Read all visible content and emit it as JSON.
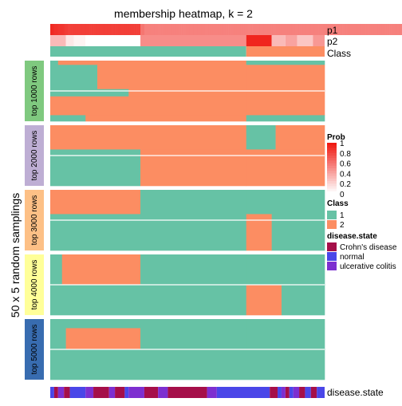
{
  "chart_data": {
    "type": "heatmap",
    "title": "membership heatmap, k = 2",
    "ylabel": "50 x 5 random samplings",
    "top_annotations": [
      "p1",
      "p2",
      "Class"
    ],
    "bottom_annotation": "disease.state",
    "row_groups": [
      {
        "label": "top 1000 rows",
        "color": "#7fc97f"
      },
      {
        "label": "top 2000 rows",
        "color": "#beaed4"
      },
      {
        "label": "top 3000 rows",
        "color": "#fdc086"
      },
      {
        "label": "top 4000 rows",
        "color": "#ffff99"
      },
      {
        "label": "top 5000 rows",
        "color": "#386cb0"
      }
    ],
    "colors": {
      "class_1": "#66c2a5",
      "class_2": "#fc8d62",
      "crohns": "#a50f49",
      "normal": "#4a46e8",
      "uc": "#7d2fd0",
      "prob_low": "#ffffff",
      "prob_high": "#ef1a12"
    },
    "legends": {
      "prob": {
        "title": "Prob",
        "ticks": [
          "1",
          "0.8",
          "0.6",
          "0.4",
          "0.2",
          "0"
        ]
      },
      "class": {
        "title": "Class",
        "items": [
          "1",
          "2"
        ]
      },
      "disease": {
        "title": "disease.state",
        "items": [
          "Crohn's disease",
          "normal",
          "ulcerative colitis"
        ]
      }
    },
    "p1": [
      0.94,
      0.92,
      0.9,
      0.9,
      0.88,
      0.88,
      0.88,
      0.86,
      0.85,
      0.84,
      0.84,
      0.84,
      0.84,
      0.84,
      0.84,
      0.84,
      0.84,
      0.84,
      0.84,
      0.84,
      0.84,
      0.84,
      0.84,
      0.84,
      0.84,
      0.84,
      0.84,
      0.84,
      0.84,
      0.84,
      0.84,
      0.84,
      0.84,
      0.84,
      0.84,
      0.84,
      0.84,
      0.84,
      0.84,
      0.84,
      0.84,
      0.84,
      0.84,
      0.84,
      0.84,
      0.84,
      0.6,
      0.6,
      0.55,
      0.55,
      0.55,
      0.55,
      0.55,
      0.55,
      0.55,
      0.55,
      0.55,
      0.55,
      0.55,
      0.55,
      0.55,
      0.55,
      0.55,
      0.55,
      0.55,
      0.55,
      0.55,
      0.55,
      0.55,
      0.55,
      0.55,
      0.55,
      0.55,
      0.55,
      0.55,
      0.55,
      0.55,
      0.55,
      0.55,
      0.55,
      0.55,
      0.55,
      0.55,
      0.55,
      0.55,
      0.55,
      0.55,
      0.55,
      0.55,
      0.55,
      0.55,
      0.55,
      0.55,
      0.55,
      0.55,
      0.55,
      0.55,
      0.55,
      0.55,
      0.55,
      0.55,
      0.55,
      0.55,
      0.55,
      0.55,
      0.55,
      0.55,
      0.55,
      0.55,
      0.55,
      0.55,
      0.55,
      0.55,
      0.55,
      0.55,
      0.55,
      0.55,
      0.55,
      0.55,
      0.55,
      0.55,
      0.55,
      0.55,
      0.55,
      0.55,
      0.55,
      0.55,
      0.55,
      0.55,
      0.55,
      0.55,
      0.55,
      0.55,
      0.55,
      0.55,
      0.55,
      0.55,
      0.55,
      0.55,
      0.55,
      0.55,
      0.55,
      0.55,
      0.55,
      0.55,
      0.55,
      0.55,
      0.55,
      0.55,
      0.55,
      0.55,
      0.55,
      0.55,
      0.55,
      0.55,
      0.55,
      0.55,
      0.55,
      0.55,
      0.55,
      0.55,
      0.55,
      0.55,
      0.55,
      0.55,
      0.55,
      0.55,
      0.55,
      0.55,
      0.55,
      0.55,
      0.55,
      0.55,
      0.55,
      0.55,
      0.55,
      0.55,
      0.55,
      0.55,
      0.55,
      0.55,
      0.55,
      0.55,
      0.55,
      0.55,
      0.55,
      0.55,
      0.55,
      0.55,
      0.55,
      0.55,
      0.55,
      0.55,
      0.55,
      0.55,
      0.55,
      0.55,
      0.55,
      0.55,
      0.55,
      0.55,
      0.55,
      0.55,
      0.55,
      0.55,
      0.55,
      0.55,
      0.55,
      0.55,
      0.55,
      0.55,
      0.55,
      0.55,
      0.55,
      0.55,
      0.55,
      0.55,
      0.55,
      0.55,
      0.55,
      0.55,
      0.55,
      0.55,
      0.55,
      0.55,
      0.55,
      0.55,
      0.55,
      0.55,
      0.55,
      0.55,
      0.55,
      0.55,
      0.55,
      0.55,
      0.55,
      0.55,
      0.55,
      0.55,
      0.55,
      0.55,
      0.55,
      0.55,
      0.55,
      0.55,
      0.55,
      0.55,
      0.55,
      0.55,
      0.55,
      0.55,
      0.55,
      0.55,
      0.55,
      0.55,
      0.55,
      0.55,
      0.55,
      0.55,
      0.55,
      0.55,
      0.55,
      0.55,
      0.55,
      0.55,
      0.55,
      0.55,
      0.55,
      0.55,
      0.55,
      0.55,
      0.55,
      0.55,
      0.55,
      0.55,
      0.55,
      0.55,
      0.55,
      0.55,
      0.55,
      0.55,
      0.55,
      0.55,
      0.55,
      0.55,
      0.55,
      0.55,
      0.55,
      0.55,
      0.55,
      0.55,
      0.55,
      0.55,
      0.55,
      0.55,
      0.55,
      0.55,
      0.55,
      0.55,
      0.55,
      0.55,
      0.55,
      0.55,
      0.55,
      0.55,
      0.55,
      0.55,
      0.55,
      0.55,
      0.55,
      0.55,
      0.55,
      0.55,
      0.55,
      0.55
    ],
    "p2_spec": [
      {
        "from": 0,
        "to": 8,
        "value": 0.3
      },
      {
        "from": 8,
        "to": 12,
        "value": 0.1
      },
      {
        "from": 12,
        "to": 18,
        "value": 0.05
      },
      {
        "from": 18,
        "to": 46,
        "value": 0.0
      },
      {
        "from": 46,
        "to": 100,
        "value": 0.5
      },
      {
        "from": 100,
        "to": 113,
        "value": 0.95
      },
      {
        "from": 113,
        "to": 120,
        "value": 0.3
      },
      {
        "from": 120,
        "to": 126,
        "value": 0.4
      },
      {
        "from": 126,
        "to": 134,
        "value": 0.25
      },
      {
        "from": 134,
        "to": 140,
        "value": 0.45
      }
    ],
    "class_spec": [
      {
        "from": 0,
        "to": 100,
        "class": 1
      },
      {
        "from": 100,
        "to": 140,
        "class": 2
      }
    ],
    "disease_spec": [
      {
        "from": 0,
        "to": 2,
        "v": "normal"
      },
      {
        "from": 2,
        "to": 4,
        "v": "crohns"
      },
      {
        "from": 4,
        "to": 7,
        "v": "uc"
      },
      {
        "from": 7,
        "to": 10,
        "v": "crohns"
      },
      {
        "from": 10,
        "to": 18,
        "v": "normal"
      },
      {
        "from": 18,
        "to": 22,
        "v": "uc"
      },
      {
        "from": 22,
        "to": 30,
        "v": "crohns"
      },
      {
        "from": 30,
        "to": 33,
        "v": "uc"
      },
      {
        "from": 33,
        "to": 38,
        "v": "crohns"
      },
      {
        "from": 38,
        "to": 40,
        "v": "normal"
      },
      {
        "from": 40,
        "to": 48,
        "v": "uc"
      },
      {
        "from": 48,
        "to": 55,
        "v": "crohns"
      },
      {
        "from": 55,
        "to": 60,
        "v": "uc"
      },
      {
        "from": 60,
        "to": 80,
        "v": "crohns"
      },
      {
        "from": 80,
        "to": 85,
        "v": "uc"
      },
      {
        "from": 85,
        "to": 112,
        "v": "normal"
      },
      {
        "from": 112,
        "to": 116,
        "v": "crohns"
      },
      {
        "from": 116,
        "to": 118,
        "v": "normal"
      },
      {
        "from": 118,
        "to": 120,
        "v": "uc"
      },
      {
        "from": 120,
        "to": 122,
        "v": "crohns"
      },
      {
        "from": 122,
        "to": 124,
        "v": "normal"
      },
      {
        "from": 124,
        "to": 127,
        "v": "uc"
      },
      {
        "from": 127,
        "to": 130,
        "v": "crohns"
      },
      {
        "from": 130,
        "to": 133,
        "v": "normal"
      },
      {
        "from": 133,
        "to": 136,
        "v": "crohns"
      },
      {
        "from": 136,
        "to": 140,
        "v": "normal"
      }
    ],
    "membership_bands": [
      [
        {
          "frac": 0.07,
          "segs": [
            [
              0,
              4,
              1
            ],
            [
              4,
              100,
              2
            ],
            [
              100,
              140,
              1
            ]
          ]
        },
        {
          "frac": 0.4,
          "segs": [
            [
              0,
              24,
              1
            ],
            [
              24,
              100,
              2
            ],
            [
              100,
              140,
              2
            ]
          ]
        },
        {
          "frac": 0.12,
          "segs": [
            [
              0,
              40,
              1
            ],
            [
              40,
              100,
              2
            ],
            [
              100,
              140,
              2
            ]
          ]
        },
        {
          "frac": 0.31,
          "segs": [
            [
              0,
              100,
              2
            ],
            [
              100,
              140,
              2
            ]
          ]
        },
        {
          "frac": 0.1,
          "segs": [
            [
              0,
              18,
              1
            ],
            [
              18,
              100,
              2
            ],
            [
              100,
              140,
              1
            ]
          ]
        }
      ],
      [
        {
          "frac": 0.4,
          "segs": [
            [
              0,
              100,
              2
            ],
            [
              100,
              115,
              1
            ],
            [
              115,
              140,
              2
            ]
          ]
        },
        {
          "frac": 0.6,
          "segs": [
            [
              0,
              46,
              1
            ],
            [
              46,
              100,
              2
            ],
            [
              100,
              140,
              2
            ]
          ]
        }
      ],
      [
        {
          "frac": 0.4,
          "segs": [
            [
              0,
              46,
              2
            ],
            [
              46,
              100,
              1
            ],
            [
              100,
              140,
              1
            ]
          ]
        },
        {
          "frac": 0.6,
          "segs": [
            [
              0,
              100,
              1
            ],
            [
              100,
              113,
              2
            ],
            [
              113,
              140,
              1
            ]
          ]
        }
      ],
      [
        {
          "frac": 0.5,
          "segs": [
            [
              0,
              6,
              1
            ],
            [
              6,
              46,
              2
            ],
            [
              46,
              100,
              1
            ],
            [
              100,
              140,
              1
            ]
          ]
        },
        {
          "frac": 0.5,
          "segs": [
            [
              0,
              100,
              1
            ],
            [
              100,
              118,
              2
            ],
            [
              118,
              140,
              1
            ]
          ]
        }
      ],
      [
        {
          "frac": 0.15,
          "segs": [
            [
              0,
              100,
              1
            ],
            [
              100,
              140,
              1
            ]
          ]
        },
        {
          "frac": 0.35,
          "segs": [
            [
              0,
              8,
              1
            ],
            [
              8,
              46,
              2
            ],
            [
              46,
              100,
              1
            ],
            [
              100,
              140,
              1
            ]
          ]
        },
        {
          "frac": 0.5,
          "segs": [
            [
              0,
              140,
              1
            ]
          ]
        }
      ]
    ]
  }
}
